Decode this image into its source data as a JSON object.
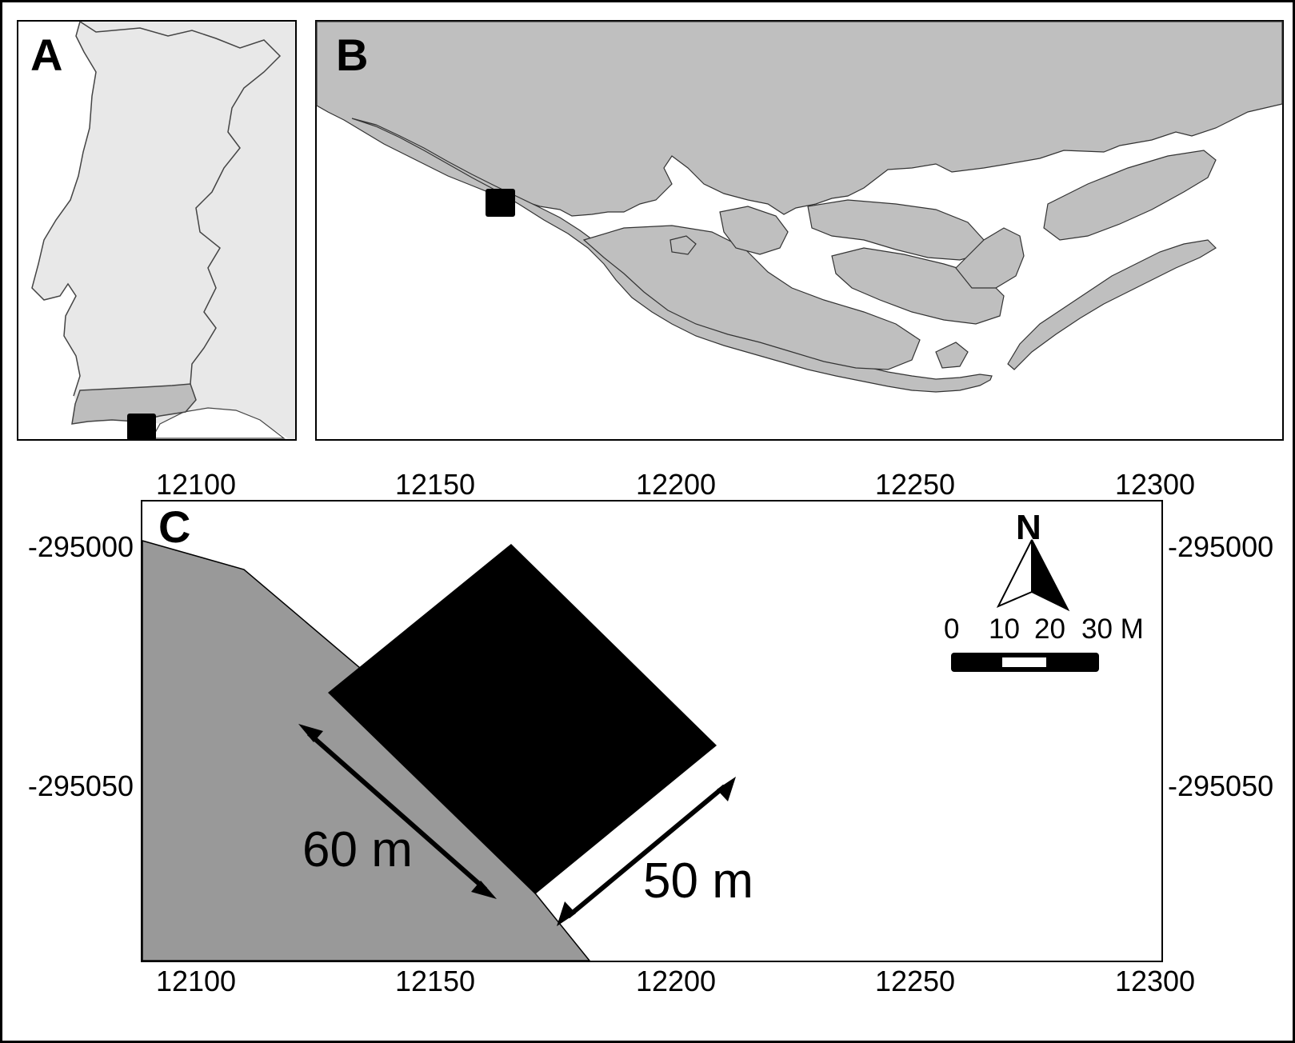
{
  "panels": {
    "a": {
      "label": "A"
    },
    "b": {
      "label": "B"
    },
    "c": {
      "label": "C"
    }
  },
  "axes": {
    "x_ticks": [
      "12100",
      "12150",
      "12200",
      "12250",
      "12300"
    ],
    "y_ticks": [
      "-295000",
      "-295050"
    ]
  },
  "dimensions": {
    "length": "60 m",
    "width": "50 m"
  },
  "scale_bar": {
    "labels": [
      "0",
      "10",
      "20",
      "30 M"
    ]
  },
  "north_arrow": {
    "label": "N"
  },
  "colors": {
    "land_inset": "#e8e8e8",
    "region_highlight": "#bdbdbd",
    "lagoon_land": "#bfbfbf",
    "beach": "#999999",
    "plot": "#000000"
  }
}
